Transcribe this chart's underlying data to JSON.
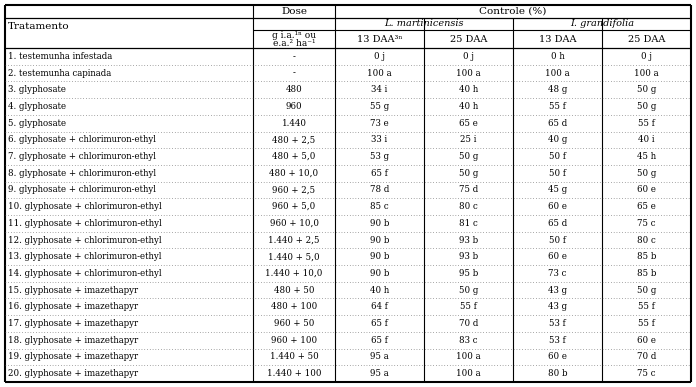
{
  "col_headers": {
    "tratamento": "Tratamento",
    "dose": "Dose",
    "controle": "Controle (%)",
    "l_martinicensis": "L. martinicensis",
    "l_grandifolia": "I. grandifolia",
    "dose_unit1": "g i.a.",
    "dose_unit2": "e.a.",
    "dose_superscript1": "1/",
    "dose_superscript2": "2/",
    "dose_unit_suffix": " ou",
    "dose_unit_ha": " ha",
    "dose_unit_ha_sup": "-1",
    "13daa_lm": "13 DAA",
    "13daa_sup": "3/",
    "25daa_lm": "25 DAA",
    "13daa_lg": "13 DAA",
    "25daa_lg": "25 DAA"
  },
  "rows": [
    [
      "1. testemunha infestada",
      "-",
      "0 j",
      "0 j",
      "0 h",
      "0 j"
    ],
    [
      "2. testemunha capinada",
      "-",
      "100 a",
      "100 a",
      "100 a",
      "100 a"
    ],
    [
      "3. glyphosate",
      "480",
      "34 i",
      "40 h",
      "48 g",
      "50 g"
    ],
    [
      "4. glyphosate",
      "960",
      "55 g",
      "40 h",
      "55 f",
      "50 g"
    ],
    [
      "5. glyphosate",
      "1.440",
      "73 e",
      "65 e",
      "65 d",
      "55 f"
    ],
    [
      "6. glyphosate + chlorimuron-ethyl",
      "480 + 2,5",
      "33 i",
      "25 i",
      "40 g",
      "40 i"
    ],
    [
      "7. glyphosate + chlorimuron-ethyl",
      "480 + 5,0",
      "53 g",
      "50 g",
      "50 f",
      "45 h"
    ],
    [
      "8. glyphosate + chlorimuron-ethyl",
      "480 + 10,0",
      "65 f",
      "50 g",
      "50 f",
      "50 g"
    ],
    [
      "9. glyphosate + chlorimuron-ethyl",
      "960 + 2,5",
      "78 d",
      "75 d",
      "45 g",
      "60 e"
    ],
    [
      "10. glyphosate + chlorimuron-ethyl",
      "960 + 5,0",
      "85 c",
      "80 c",
      "60 e",
      "65 e"
    ],
    [
      "11. glyphosate + chlorimuron-ethyl",
      "960 + 10,0",
      "90 b",
      "81 c",
      "65 d",
      "75 c"
    ],
    [
      "12. glyphosate + chlorimuron-ethyl",
      "1.440 + 2,5",
      "90 b",
      "93 b",
      "50 f",
      "80 c"
    ],
    [
      "13. glyphosate + chlorimuron-ethyl",
      "1.440 + 5,0",
      "90 b",
      "93 b",
      "60 e",
      "85 b"
    ],
    [
      "14. glyphosate + chlorimuron-ethyl",
      "1.440 + 10,0",
      "90 b",
      "95 b",
      "73 c",
      "85 b"
    ],
    [
      "15. glyphosate + imazethapyr",
      "480 + 50",
      "40 h",
      "50 g",
      "43 g",
      "50 g"
    ],
    [
      "16. glyphosate + imazethapyr",
      "480 + 100",
      "64 f",
      "55 f",
      "43 g",
      "55 f"
    ],
    [
      "17. glyphosate + imazethapyr",
      "960 + 50",
      "65 f",
      "70 d",
      "53 f",
      "55 f"
    ],
    [
      "18. glyphosate + imazethapyr",
      "960 + 100",
      "65 f",
      "83 c",
      "53 f",
      "60 e"
    ],
    [
      "19. glyphosate + imazethapyr",
      "1.440 + 50",
      "95 a",
      "100 a",
      "60 e",
      "70 d"
    ],
    [
      "20. glyphosate + imazethapyr",
      "1.440 + 100",
      "95 a",
      "100 a",
      "80 b",
      "75 c"
    ]
  ],
  "bg_color": "#ffffff",
  "text_color": "#000000",
  "font_size": 6.2,
  "header_font_size": 7.5
}
